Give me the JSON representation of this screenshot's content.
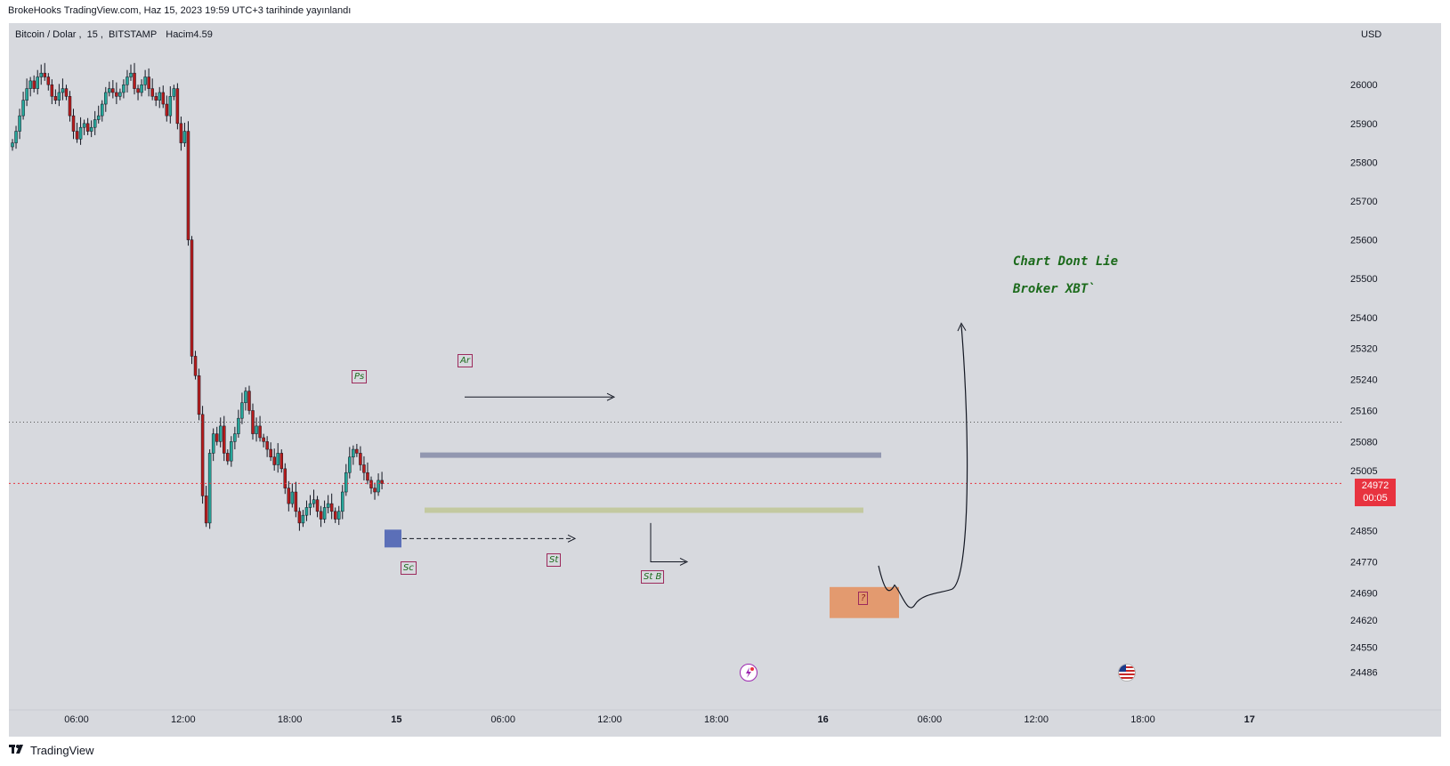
{
  "caption": "BrokeHooks TradingView.com, Haz 15, 2023 19:59 UTC+3 tarihinde yayınlandı",
  "symbol": {
    "name": "Bitcoin / Dolar",
    "interval": "15",
    "exchange": "BITSTAMP",
    "volume_label": "Hacim",
    "volume_value": "4.59"
  },
  "currency": "USD",
  "price_axis": {
    "labels": [
      "26000",
      "25900",
      "25800",
      "25700",
      "25600",
      "25500",
      "25400",
      "25320",
      "25240",
      "25160",
      "25080",
      "25005",
      "24850",
      "24770",
      "24690",
      "24620",
      "24550",
      "24486"
    ]
  },
  "time_axis": {
    "labels": [
      "06:00",
      "12:00",
      "18:00",
      "15",
      "06:00",
      "12:00",
      "18:00",
      "16",
      "06:00",
      "12:00",
      "18:00",
      "17"
    ]
  },
  "last_price": {
    "value": "24972",
    "countdown": "00:05"
  },
  "annotations": {
    "note_line1": "Chart Dont Lie",
    "note_line2": "Broker XBT`",
    "ps": "Ps",
    "ar": "Ar",
    "sc": "Sc",
    "st": "St",
    "stb": "St B",
    "question": "?"
  },
  "colors": {
    "background": "#d7d9de",
    "candle_up": "#26a69a",
    "candle_down": "#b71c1c",
    "wick": "#131722",
    "last_price": "#e8333f",
    "resistance_band": "#9297b0",
    "support_band": "#c3c9a0",
    "target_box": "#e39a6f",
    "note_text": "#1b6a1b"
  },
  "icons": [
    "lightning-event-icon",
    "us-flag-event-icon",
    "tradingview-logo-icon"
  ],
  "footer": {
    "brand": "TradingView"
  },
  "chart_data": {
    "type": "candlestick",
    "symbol": "Bitcoin / Dolar",
    "interval": "15",
    "ylim": [
      24450,
      26090
    ],
    "close_series": [
      25850,
      25880,
      25920,
      25960,
      25990,
      26010,
      25990,
      26020,
      26030,
      26020,
      26000,
      25970,
      25960,
      25980,
      25990,
      25970,
      25920,
      25880,
      25860,
      25890,
      25900,
      25880,
      25890,
      25910,
      25920,
      25950,
      25980,
      25990,
      25980,
      25970,
      25980,
      26000,
      26020,
      26030,
      25990,
      25980,
      26000,
      26020,
      25990,
      25970,
      25960,
      25980,
      25950,
      25920,
      25970,
      25990,
      25900,
      25850,
      25880,
      25600,
      25300,
      25250,
      25150,
      24940,
      24870,
      25050,
      25100,
      25080,
      25120,
      25050,
      25030,
      25080,
      25100,
      25140,
      25180,
      25210,
      25160,
      25100,
      25120,
      25090,
      25080,
      25060,
      25040,
      25020,
      25050,
      25010,
      24960,
      24920,
      24950,
      24900,
      24870,
      24890,
      24910,
      24920,
      24930,
      24900,
      24880,
      24910,
      24920,
      24900,
      24880,
      24900,
      24950,
      25000,
      25040,
      25060,
      25050,
      25020,
      25000,
      24980,
      24960,
      24950,
      24980,
      24972
    ]
  }
}
